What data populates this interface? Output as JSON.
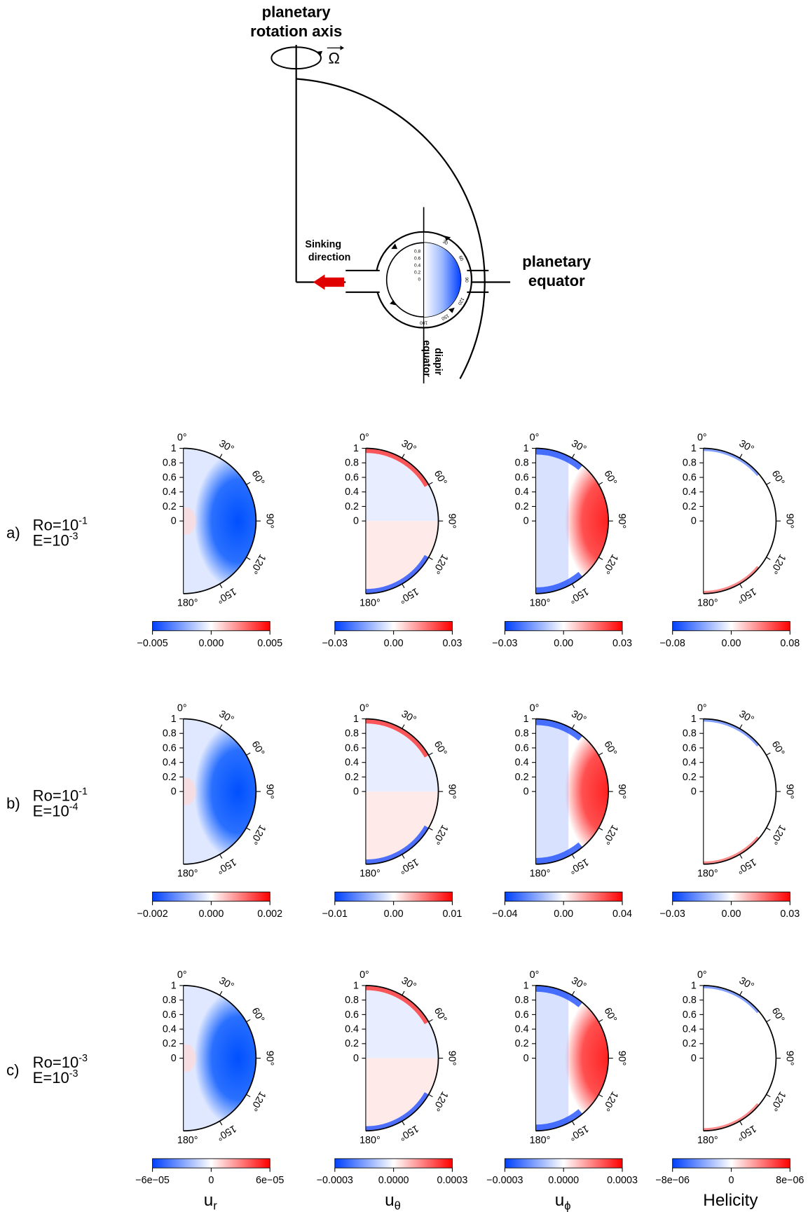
{
  "diagram": {
    "axis_label": [
      "planetary",
      "rotation axis"
    ],
    "omega": "Ω",
    "sinking": [
      "Sinking",
      "direction"
    ],
    "equator": [
      "planetary",
      "equator"
    ],
    "diapir": [
      "diapir",
      "equator"
    ],
    "inset_radial_ticks": [
      "0.8",
      "0.6",
      "0.4",
      "0.2",
      "0"
    ],
    "inset_angle_ticks": [
      "30",
      "60",
      "90",
      "120",
      "150",
      "180"
    ]
  },
  "radial_ticks": [
    "1",
    "0.8",
    "0.6",
    "0.4",
    "0.2",
    "0"
  ],
  "angle_ticks": [
    "0°",
    "30°",
    "60°",
    "90°",
    "120°",
    "150°",
    "180°"
  ],
  "columns": [
    {
      "symbol": "u",
      "subscript": "r"
    },
    {
      "symbol": "u",
      "subscript": "θ"
    },
    {
      "symbol": "u",
      "subscript": "ϕ"
    },
    {
      "symbol": "Helicity",
      "subscript": ""
    }
  ],
  "rows": [
    {
      "label": "a)",
      "ro_base": "Ro=10",
      "ro_exp": "-1",
      "e_base": "E=10",
      "e_exp": "-3",
      "colorbars": [
        [
          "−0.005",
          "0.000",
          "0.005"
        ],
        [
          "−0.03",
          "0.00",
          "0.03"
        ],
        [
          "−0.03",
          "0.00",
          "0.03"
        ],
        [
          "−0.08",
          "0.00",
          "0.08"
        ]
      ]
    },
    {
      "label": "b)",
      "ro_base": "Ro=10",
      "ro_exp": "-1",
      "e_base": "E=10",
      "e_exp": "-4",
      "colorbars": [
        [
          "−0.002",
          "0.000",
          "0.002"
        ],
        [
          "−0.01",
          "0.00",
          "0.01"
        ],
        [
          "−0.04",
          "0.00",
          "0.04"
        ],
        [
          "−0.03",
          "0.00",
          "0.03"
        ]
      ]
    },
    {
      "label": "c)",
      "ro_base": "Ro=10",
      "ro_exp": "-3",
      "e_base": "E=10",
      "e_exp": "-3",
      "colorbars": [
        [
          "−6e−05",
          "0",
          "6e−05"
        ],
        [
          "−0.0003",
          "0.0000",
          "0.0003"
        ],
        [
          "−0.0003",
          "0.0000",
          "0.0003"
        ],
        [
          "−8e−06",
          "0",
          "8e−06"
        ]
      ]
    }
  ]
}
